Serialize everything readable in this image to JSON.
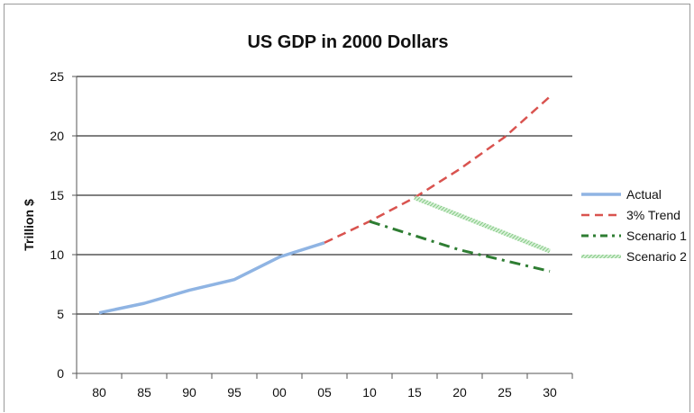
{
  "chart_data": {
    "type": "line",
    "title": "US GDP in 2000 Dollars",
    "xlabel": "",
    "ylabel": "Trillion $",
    "categories": [
      "80",
      "85",
      "90",
      "95",
      "00",
      "05",
      "10",
      "15",
      "20",
      "25",
      "30"
    ],
    "ylim": [
      0,
      25
    ],
    "yticks": [
      0,
      5,
      10,
      15,
      20,
      25
    ],
    "grid": true,
    "legend_position": "right",
    "series": [
      {
        "name": "Actual",
        "color": "#8fb4e3",
        "dash": "solid",
        "points": [
          [
            0,
            5.1
          ],
          [
            1,
            5.9
          ],
          [
            2,
            7.0
          ],
          [
            3,
            7.9
          ],
          [
            4,
            9.8
          ],
          [
            5,
            11.0
          ]
        ]
      },
      {
        "name": "3% Trend",
        "color": "#d9534f",
        "dash": "dash",
        "points": [
          [
            5,
            11.0
          ],
          [
            6,
            12.8
          ],
          [
            7,
            14.8
          ],
          [
            8,
            17.2
          ],
          [
            9,
            19.9
          ],
          [
            10,
            23.3
          ]
        ]
      },
      {
        "name": "Scenario 1",
        "color": "#2e7d32",
        "dash": "dashdot",
        "points": [
          [
            6,
            12.8
          ],
          [
            7,
            11.6
          ],
          [
            8,
            10.4
          ],
          [
            9,
            9.5
          ],
          [
            10,
            8.6
          ]
        ]
      },
      {
        "name": "Scenario 2",
        "color": "#8fd18f",
        "dash": "hatched",
        "points": [
          [
            7,
            14.8
          ],
          [
            8,
            13.3
          ],
          [
            9,
            11.8
          ],
          [
            10,
            10.3
          ]
        ]
      }
    ]
  }
}
